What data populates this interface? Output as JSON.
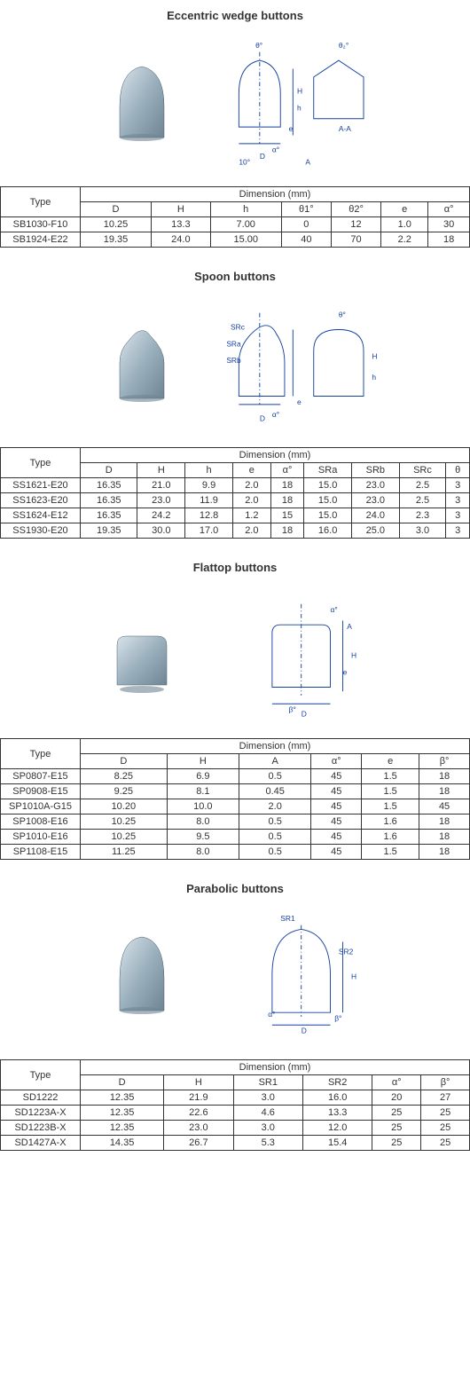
{
  "sections": [
    {
      "title": "Eccentric wedge buttons",
      "photo": {
        "shape": "dome",
        "fill": "#9bb0bd",
        "shadow": "#6f8594"
      },
      "diagram_labels": [
        "θ°",
        "θ₂°",
        "H",
        "h",
        "e",
        "α°",
        "D",
        "10°",
        "A-A",
        "A"
      ],
      "table": {
        "type_label": "Type",
        "dim_label": "Dimension (mm)",
        "columns": [
          "D",
          "H",
          "h",
          "θ1°",
          "θ2°",
          "e",
          "α°"
        ],
        "rows": [
          {
            "type": "SB1030-F10",
            "cells": [
              "10.25",
              "13.3",
              "7.00",
              "0",
              "12",
              "1.0",
              "30"
            ]
          },
          {
            "type": "SB1924-E22",
            "cells": [
              "19.35",
              "24.0",
              "15.00",
              "40",
              "70",
              "2.2",
              "18"
            ]
          }
        ]
      }
    },
    {
      "title": "Spoon buttons",
      "photo": {
        "shape": "spoon",
        "fill": "#9bb0bd",
        "shadow": "#6f8594"
      },
      "diagram_labels": [
        "SRc",
        "SRa",
        "SRb",
        "θ°",
        "H",
        "h",
        "e",
        "α°",
        "D"
      ],
      "table": {
        "type_label": "Type",
        "dim_label": "Dimension (mm)",
        "columns": [
          "D",
          "H",
          "h",
          "e",
          "α°",
          "SRa",
          "SRb",
          "SRc",
          "θ"
        ],
        "rows": [
          {
            "type": "SS1621-E20",
            "cells": [
              "16.35",
              "21.0",
              "9.9",
              "2.0",
              "18",
              "15.0",
              "23.0",
              "2.5",
              "3"
            ]
          },
          {
            "type": "SS1623-E20",
            "cells": [
              "16.35",
              "23.0",
              "11.9",
              "2.0",
              "18",
              "15.0",
              "23.0",
              "2.5",
              "3"
            ]
          },
          {
            "type": "SS1624-E12",
            "cells": [
              "16.35",
              "24.2",
              "12.8",
              "1.2",
              "15",
              "15.0",
              "24.0",
              "2.3",
              "3"
            ]
          },
          {
            "type": "SS1930-E20",
            "cells": [
              "19.35",
              "30.0",
              "17.0",
              "2.0",
              "18",
              "16.0",
              "25.0",
              "3.0",
              "3"
            ]
          }
        ]
      }
    },
    {
      "title": "Flattop buttons",
      "photo": {
        "shape": "flattop",
        "fill": "#9bb0bd",
        "shadow": "#6f8594"
      },
      "diagram_labels": [
        "α°",
        "A",
        "H",
        "e",
        "β°",
        "D"
      ],
      "table": {
        "type_label": "Type",
        "dim_label": "Dimension (mm)",
        "columns": [
          "D",
          "H",
          "A",
          "α°",
          "e",
          "β°"
        ],
        "rows": [
          {
            "type": "SP0807-E15",
            "cells": [
              "8.25",
              "6.9",
              "0.5",
              "45",
              "1.5",
              "18"
            ]
          },
          {
            "type": "SP0908-E15",
            "cells": [
              "9.25",
              "8.1",
              "0.45",
              "45",
              "1.5",
              "18"
            ]
          },
          {
            "type": "SP1010A-G15",
            "cells": [
              "10.20",
              "10.0",
              "2.0",
              "45",
              "1.5",
              "45"
            ]
          },
          {
            "type": "SP1008-E16",
            "cells": [
              "10.25",
              "8.0",
              "0.5",
              "45",
              "1.6",
              "18"
            ]
          },
          {
            "type": "SP1010-E16",
            "cells": [
              "10.25",
              "9.5",
              "0.5",
              "45",
              "1.6",
              "18"
            ]
          },
          {
            "type": "SP1108-E15",
            "cells": [
              "11.25",
              "8.0",
              "0.5",
              "45",
              "1.5",
              "18"
            ]
          }
        ]
      }
    },
    {
      "title": "Parabolic buttons",
      "photo": {
        "shape": "parabolic",
        "fill": "#9bb0bd",
        "shadow": "#6f8594"
      },
      "diagram_labels": [
        "SR1",
        "SR2",
        "H",
        "α°",
        "β°",
        "D"
      ],
      "table": {
        "type_label": "Type",
        "dim_label": "Dimension (mm)",
        "columns": [
          "D",
          "H",
          "SR1",
          "SR2",
          "α°",
          "β°"
        ],
        "rows": [
          {
            "type": "SD1222",
            "cells": [
              "12.35",
              "21.9",
              "3.0",
              "16.0",
              "20",
              "27"
            ]
          },
          {
            "type": "SD1223A-X",
            "cells": [
              "12.35",
              "22.6",
              "4.6",
              "13.3",
              "25",
              "25"
            ]
          },
          {
            "type": "SD1223B-X",
            "cells": [
              "12.35",
              "23.0",
              "3.0",
              "12.0",
              "25",
              "25"
            ]
          },
          {
            "type": "SD1427A-X",
            "cells": [
              "14.35",
              "26.7",
              "5.3",
              "15.4",
              "25",
              "25"
            ]
          }
        ]
      }
    }
  ],
  "diagram_stroke": "#1540a0",
  "diagram_text_color": "#1540a0"
}
